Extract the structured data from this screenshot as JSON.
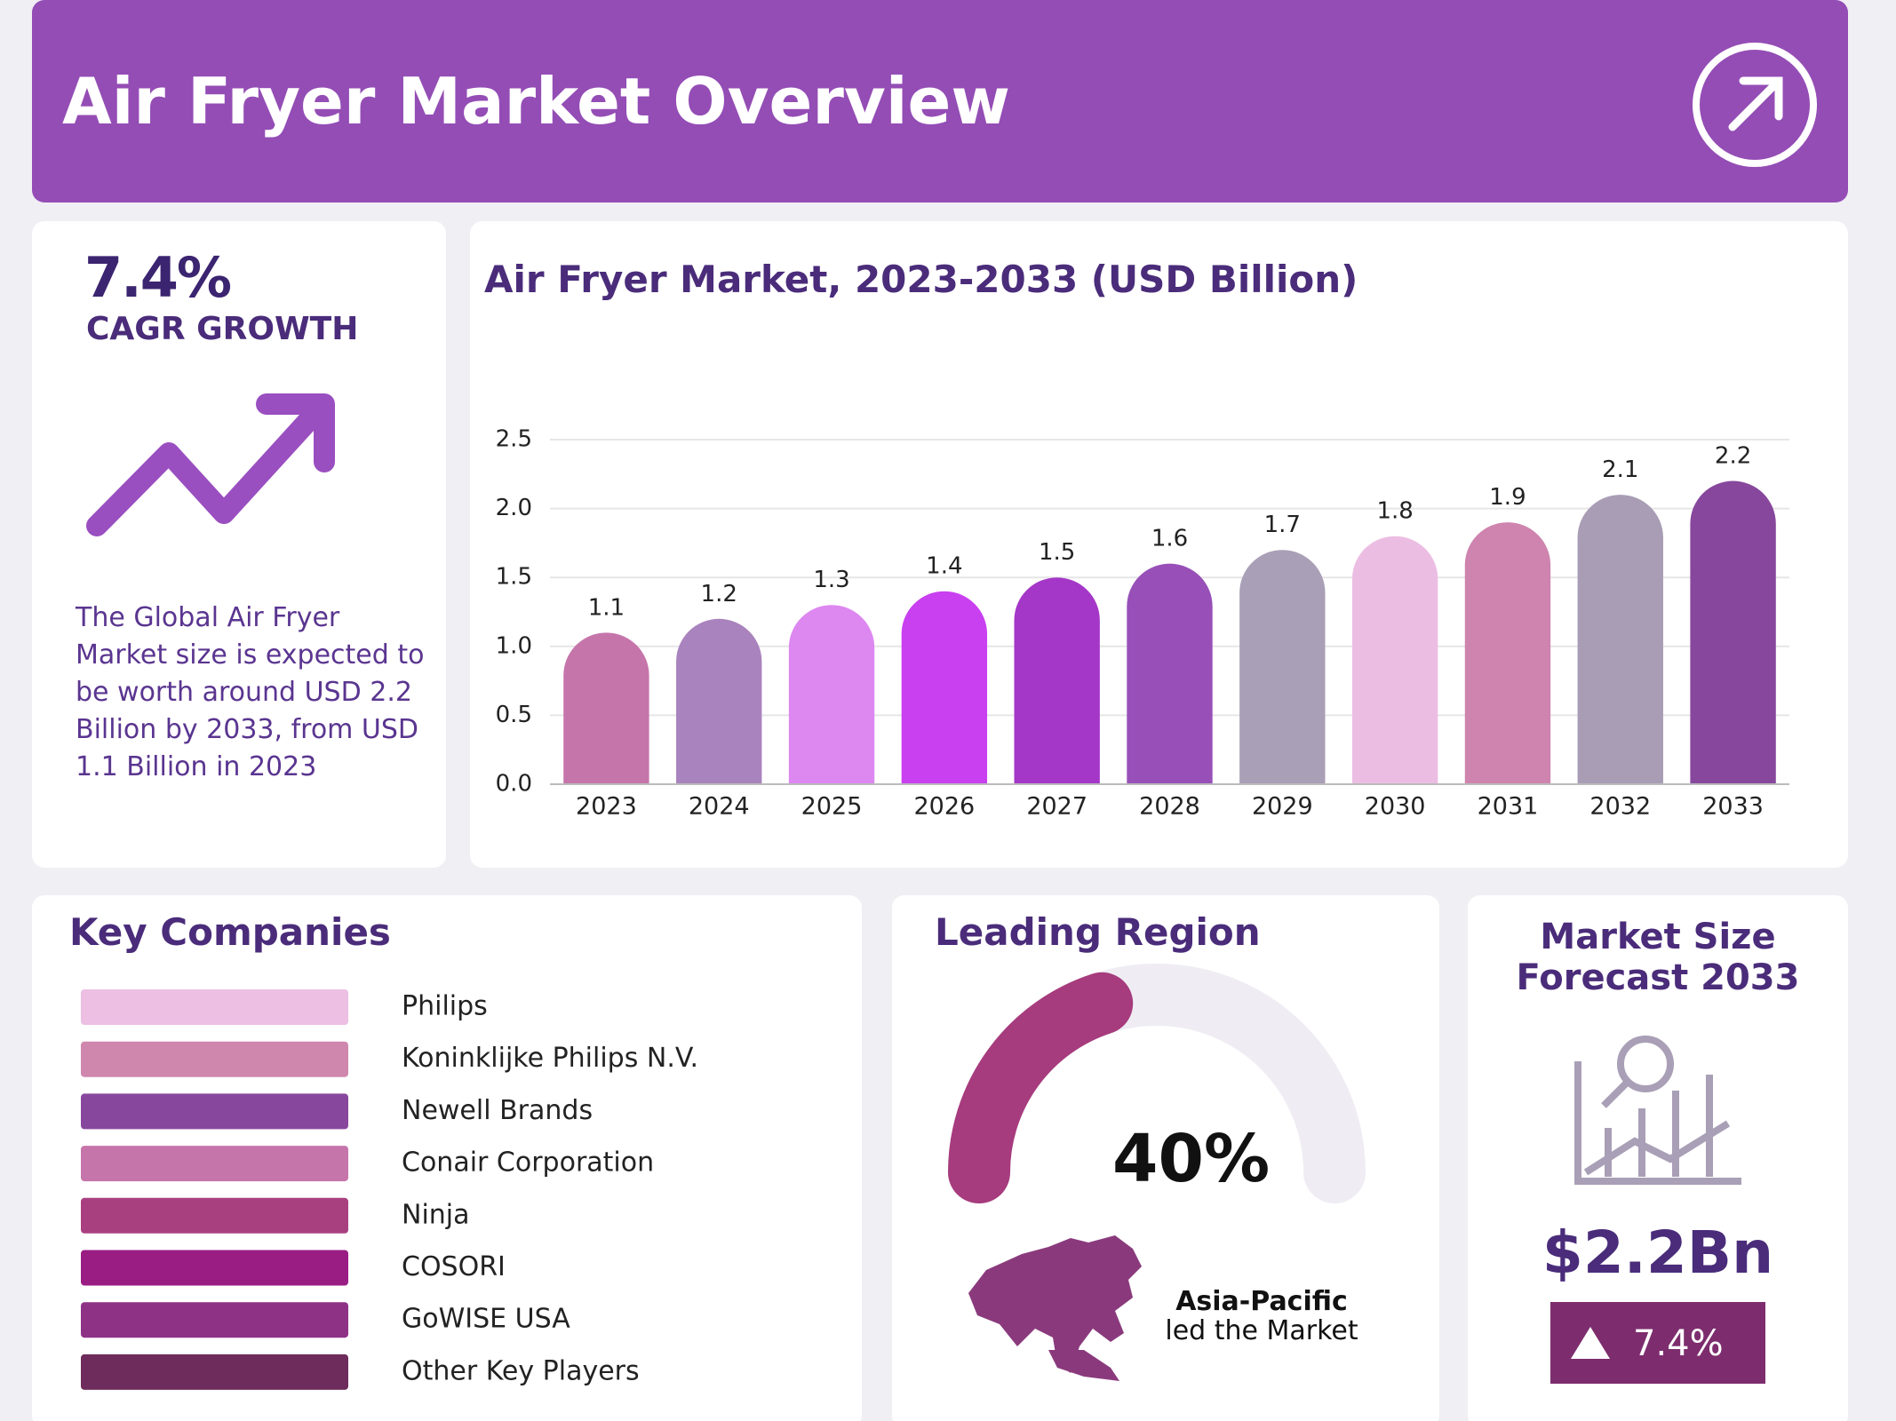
{
  "header": {
    "title": "Air Fryer Market Overview"
  },
  "cagr": {
    "value": "7.4%",
    "label": "CAGR GROWTH",
    "description": "The Global Air Fryer Market size is expected to be worth around USD 2.2 Billion by 2033, from USD 1.1 Billion in 2023"
  },
  "chart_data": {
    "type": "bar",
    "title": "Air Fryer Market, 2023-2033 (USD Billion)",
    "categories": [
      "2023",
      "2024",
      "2025",
      "2026",
      "2027",
      "2028",
      "2029",
      "2030",
      "2031",
      "2032",
      "2033"
    ],
    "values": [
      1.1,
      1.2,
      1.3,
      1.4,
      1.5,
      1.6,
      1.7,
      1.8,
      1.9,
      2.1,
      2.2
    ],
    "colors": [
      "#c675ab",
      "#a983bd",
      "#dd87f1",
      "#c940f0",
      "#a437c8",
      "#9850b8",
      "#a99fb6",
      "#ecbde3",
      "#ce84ae",
      "#a89db5",
      "#87479c"
    ],
    "ylim": [
      0,
      2.5
    ],
    "yticks": [
      {
        "value": 0,
        "label": "0.0"
      },
      0.5,
      {
        "value": 1,
        "label": "1.0"
      },
      1.5,
      {
        "value": 2,
        "label": "2.0"
      },
      2.5
    ],
    "grid": true
  },
  "companies": {
    "title": "Key Companies",
    "items": [
      {
        "name": "Philips",
        "color": "#ecbfe3"
      },
      {
        "name": "Koninklijke Philips N.V.",
        "color": "#cf87ae"
      },
      {
        "name": "Newell Brands",
        "color": "#87479c"
      },
      {
        "name": "Conair Corporation",
        "color": "#c675ab"
      },
      {
        "name": "Ninja",
        "color": "#a84080"
      },
      {
        "name": "COSORI",
        "color": "#9a1d84"
      },
      {
        "name": "GoWISE USA",
        "color": "#8e3286"
      },
      {
        "name": "Other Key Players",
        "color": "#6e2c5c"
      }
    ]
  },
  "region": {
    "title": "Leading Region",
    "value": 40,
    "value_label": "40%",
    "name": "Asia-Pacific",
    "note": "led the Market"
  },
  "forecast": {
    "title": "Market Size Forecast 2033",
    "value": "$2.2Bn",
    "growth": "7.4%"
  }
}
